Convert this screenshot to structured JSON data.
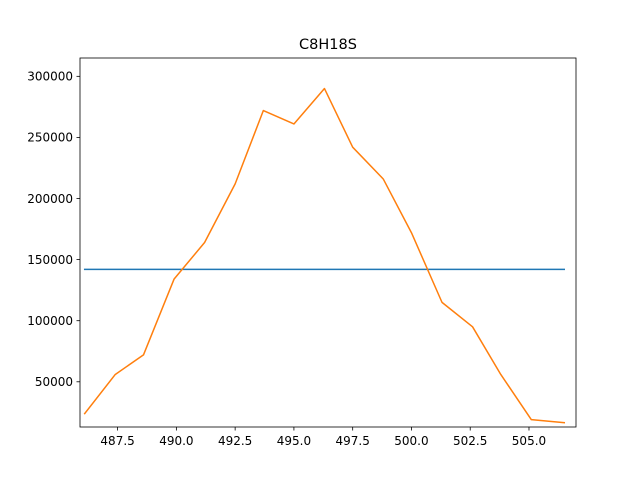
{
  "chart_data": {
    "type": "line",
    "title": "C8H18S",
    "xlabel": "",
    "ylabel": "",
    "xlim": [
      485.9,
      507.0
    ],
    "ylim": [
      13000,
      315000
    ],
    "grid": false,
    "x_ticks": [
      487.5,
      490.0,
      492.5,
      495.0,
      497.5,
      500.0,
      502.5,
      505.0
    ],
    "x_tick_labels": [
      "487.5",
      "490.0",
      "492.5",
      "495.0",
      "497.5",
      "500.0",
      "502.5",
      "505.0"
    ],
    "y_ticks": [
      50000,
      100000,
      150000,
      200000,
      250000,
      300000
    ],
    "y_tick_labels": [
      "50000",
      "100000",
      "150000",
      "200000",
      "250000",
      "300000"
    ],
    "series": [
      {
        "color": "#1f77b4",
        "x": [
          486.1,
          506.5
        ],
        "y": [
          142000,
          142000
        ]
      },
      {
        "color": "#ff7f0e",
        "x": [
          486.1,
          487.4,
          488.6,
          489.9,
          491.2,
          492.5,
          493.7,
          495.0,
          496.3,
          497.5,
          498.8,
          500.0,
          501.3,
          502.6,
          503.8,
          505.1,
          506.5
        ],
        "y": [
          24000,
          56000,
          72000,
          134000,
          164000,
          212000,
          272000,
          261000,
          290000,
          242000,
          216000,
          172000,
          115000,
          95000,
          56000,
          19000,
          16500
        ]
      }
    ]
  }
}
